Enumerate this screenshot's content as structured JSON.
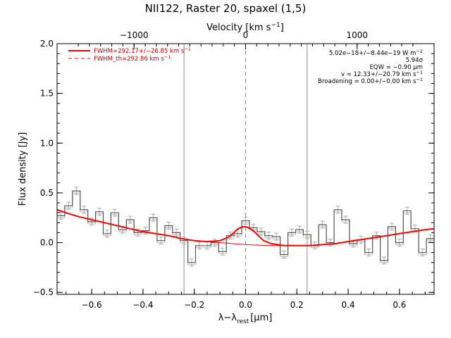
{
  "chart_data": {
    "type": "line",
    "title": "NII122, Raster 20, spaxel (1,5)",
    "xlabel": "λ−λ",
    "xlabel_sub": "rest",
    "xlabel_unit": "[μm]",
    "ylabel": "Flux density [Jy]",
    "top_axis": {
      "label": "Velocity [km s",
      "label_sup": "−1",
      "label_end": "]",
      "ticks": [
        -1000,
        0,
        1000
      ],
      "tick_labels": [
        "−1000",
        "0",
        "1000"
      ],
      "range": [
        -1690,
        1690
      ]
    },
    "xlim": [
      -0.735,
      0.735
    ],
    "ylim": [
      -0.52,
      2.0
    ],
    "xticks": [
      -0.6,
      -0.4,
      -0.2,
      0.0,
      0.2,
      0.4,
      0.6
    ],
    "xtick_labels": [
      "−0.6",
      "−0.4",
      "−0.2",
      "0.0",
      "0.2",
      "0.4",
      "0.6"
    ],
    "yticks": [
      -0.5,
      0.0,
      0.5,
      1.0,
      1.5,
      2.0
    ],
    "ytick_labels": [
      "−0.5",
      "0.0",
      "0.5",
      "1.0",
      "1.5",
      "2.0"
    ],
    "grid": false,
    "legend_position": "top-left",
    "vertical_lines": [
      {
        "x": -0.24,
        "style": "solid",
        "color": "#888888"
      },
      {
        "x": 0.0,
        "style": "dashed",
        "color": "#888888"
      },
      {
        "x": 0.24,
        "style": "solid",
        "color": "#888888"
      }
    ],
    "legend": [
      {
        "text": "FWHM=292.17+/−26.85 km s",
        "sup": "−1",
        "style": "solid",
        "color": "#ff0000"
      },
      {
        "text": "FWHM_th=292.86 km s",
        "sup": "−1",
        "style": "dashed",
        "color": "#ff0000"
      }
    ],
    "annotations": [
      {
        "text": "5.02e−18+/−8.44e−19 W m",
        "sup": "−2"
      },
      {
        "text": "5.94σ",
        "sup": ""
      },
      {
        "text": "EQW = −0.90 μm",
        "sup": ""
      },
      {
        "text": "v = 12.33+/−20.79 km s",
        "sup": "−1"
      },
      {
        "text": "Broadening = 0.00+/−0.00 km s",
        "sup": "−1"
      }
    ],
    "series": [
      {
        "name": "spectrum",
        "style": "step",
        "color": "#555555",
        "x": [
          -0.72,
          -0.69,
          -0.66,
          -0.63,
          -0.6,
          -0.57,
          -0.54,
          -0.51,
          -0.48,
          -0.45,
          -0.42,
          -0.39,
          -0.36,
          -0.33,
          -0.3,
          -0.27,
          -0.24,
          -0.21,
          -0.18,
          -0.15,
          -0.12,
          -0.09,
          -0.06,
          -0.03,
          0.0,
          0.03,
          0.06,
          0.09,
          0.12,
          0.15,
          0.18,
          0.21,
          0.24,
          0.27,
          0.3,
          0.33,
          0.36,
          0.39,
          0.42,
          0.45,
          0.48,
          0.51,
          0.54,
          0.57,
          0.6,
          0.63,
          0.66,
          0.69,
          0.72
        ],
        "y": [
          0.27,
          0.37,
          0.52,
          0.33,
          0.21,
          0.31,
          0.09,
          0.3,
          0.13,
          0.23,
          0.1,
          0.12,
          0.25,
          0.02,
          0.17,
          0.1,
          0.02,
          -0.2,
          -0.03,
          -0.03,
          0.0,
          -0.09,
          0.07,
          0.09,
          0.22,
          0.15,
          0.11,
          0.07,
          0.06,
          -0.12,
          0.1,
          0.13,
          0.08,
          -0.03,
          0.18,
          0.0,
          0.33,
          0.23,
          -0.01,
          0.03,
          -0.1,
          0.07,
          -0.18,
          0.16,
          0.0,
          0.32,
          0.14,
          -0.1,
          0.04
        ]
      },
      {
        "name": "model",
        "style": "smooth",
        "color": "#ff0000",
        "x": [
          -0.735,
          -0.7,
          -0.65,
          -0.6,
          -0.55,
          -0.5,
          -0.45,
          -0.4,
          -0.35,
          -0.3,
          -0.25,
          -0.2,
          -0.15,
          -0.1,
          -0.07,
          -0.05,
          -0.03,
          -0.01,
          0.0,
          0.01,
          0.03,
          0.05,
          0.07,
          0.1,
          0.15,
          0.2,
          0.25,
          0.3,
          0.35,
          0.4,
          0.45,
          0.5,
          0.55,
          0.6,
          0.65,
          0.7,
          0.735
        ],
        "y": [
          0.33,
          0.3,
          0.26,
          0.23,
          0.2,
          0.17,
          0.14,
          0.11,
          0.09,
          0.07,
          0.04,
          0.02,
          0.01,
          0.02,
          0.05,
          0.09,
          0.14,
          0.16,
          0.16,
          0.15,
          0.12,
          0.07,
          0.02,
          -0.01,
          -0.03,
          -0.03,
          -0.03,
          -0.02,
          -0.01,
          0.01,
          0.03,
          0.05,
          0.07,
          0.09,
          0.11,
          0.13,
          0.14
        ]
      },
      {
        "name": "continuum",
        "style": "smooth-thin",
        "color": "#ff0000",
        "x": [
          -0.15,
          -0.1,
          -0.05,
          0.0,
          0.05,
          0.1,
          0.15
        ],
        "y": [
          0.01,
          0.0,
          -0.01,
          -0.02,
          -0.025,
          -0.03,
          -0.03
        ]
      }
    ]
  }
}
